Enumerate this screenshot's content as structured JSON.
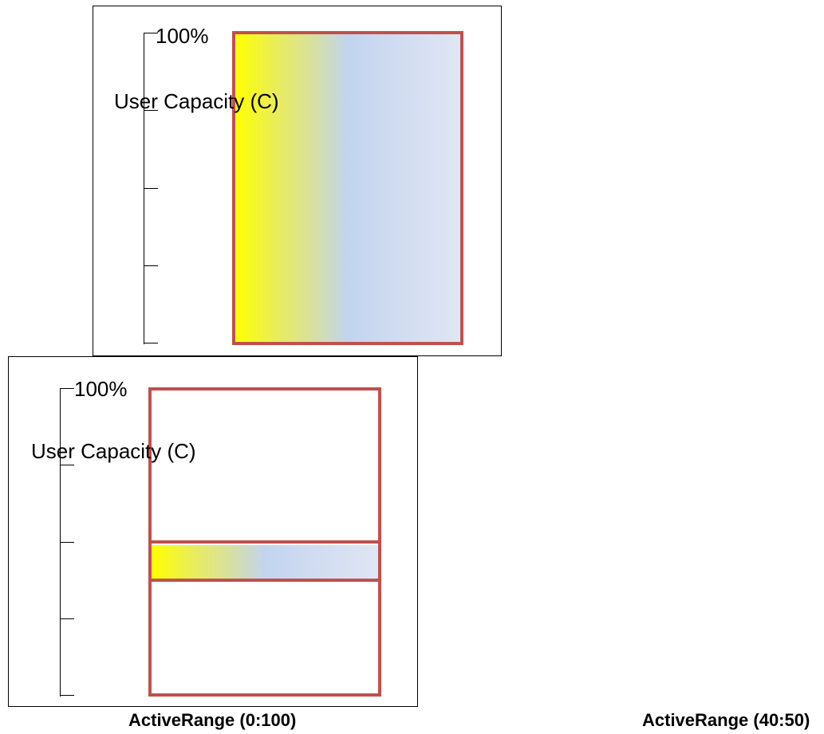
{
  "panels": [
    {
      "scale_max_label": "100%",
      "ylabel": "User Capacity (C)",
      "active_range": [
        0,
        100
      ]
    },
    {
      "scale_max_label": "100%",
      "ylabel": "User Capacity (C)",
      "active_range": [
        40,
        50
      ]
    }
  ],
  "captions": {
    "left": "ActiveRange (0:100)",
    "right": "ActiveRange (40:50)"
  },
  "colors": {
    "box_border": "#c0504d",
    "gradient_start": "#ffff00",
    "gradient_end": "#dfe6f4"
  }
}
